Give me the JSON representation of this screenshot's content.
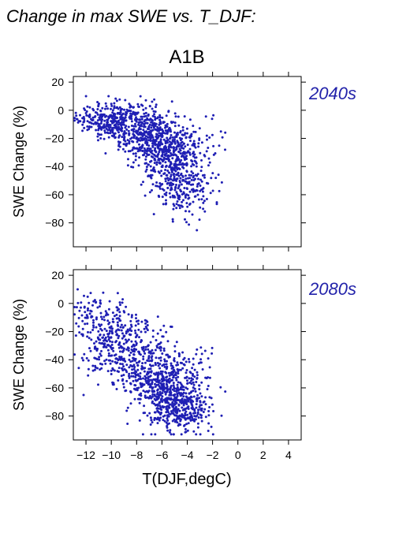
{
  "figure": {
    "title": "Change in max SWE vs. T_DJF:",
    "scenario": "A1B",
    "xlabel": "T(DJF,degC)"
  },
  "colors": {
    "points": "#1f1fb4",
    "period_label": "#2222aa",
    "axis": "#000000"
  },
  "chart_data": [
    {
      "type": "scatter",
      "period": "2040s",
      "ylabel": "SWE Change (%)",
      "xlim": [
        -13,
        5
      ],
      "ylim": [
        -97,
        24
      ],
      "xticks": [
        -12,
        -10,
        -8,
        -6,
        -4,
        -2,
        0,
        2,
        4
      ],
      "xtick_labels": [
        "",
        "",
        "",
        "",
        "",
        "",
        "",
        "",
        ""
      ],
      "yticks": [
        20,
        0,
        -20,
        -40,
        -60,
        -80
      ],
      "ytick_labels": [
        "20",
        "0",
        "−20",
        "−40",
        "−60",
        "−80"
      ],
      "grid": false,
      "clusters": [
        {
          "cx": -9.5,
          "cy": -8,
          "sx": 1.3,
          "sy": 7,
          "n": 320
        },
        {
          "cx": -7.0,
          "cy": -18,
          "sx": 1.2,
          "sy": 10,
          "n": 330
        },
        {
          "cx": -5.2,
          "cy": -35,
          "sx": 1.1,
          "sy": 13,
          "n": 380
        },
        {
          "cx": -4.2,
          "cy": -55,
          "sx": 1.2,
          "sy": 11,
          "n": 160
        },
        {
          "cx": -2.5,
          "cy": -30,
          "sx": 0.9,
          "sy": 12,
          "n": 40
        },
        {
          "cx": -11.5,
          "cy": -5,
          "sx": 0.8,
          "sy": 5,
          "n": 40
        }
      ]
    },
    {
      "type": "scatter",
      "period": "2080s",
      "ylabel": "SWE Change (%)",
      "xlim": [
        -13,
        5
      ],
      "ylim": [
        -97,
        24
      ],
      "xticks": [
        -12,
        -10,
        -8,
        -6,
        -4,
        -2,
        0,
        2,
        4
      ],
      "xtick_labels": [
        "−12",
        "−10",
        "−8",
        "−6",
        "−4",
        "−2",
        "0",
        "2",
        "4"
      ],
      "yticks": [
        20,
        0,
        -20,
        -40,
        -60,
        -80
      ],
      "ytick_labels": [
        "20",
        "0",
        "−20",
        "−40",
        "−60",
        "−80"
      ],
      "grid": false,
      "clusters": [
        {
          "cx": -10.0,
          "cy": -25,
          "sx": 1.2,
          "sy": 14,
          "n": 280
        },
        {
          "cx": -7.5,
          "cy": -45,
          "sx": 1.3,
          "sy": 15,
          "n": 300
        },
        {
          "cx": -5.6,
          "cy": -65,
          "sx": 1.1,
          "sy": 12,
          "n": 420
        },
        {
          "cx": -4.0,
          "cy": -75,
          "sx": 1.1,
          "sy": 9,
          "n": 180
        },
        {
          "cx": -3.5,
          "cy": -50,
          "sx": 1.0,
          "sy": 12,
          "n": 60
        },
        {
          "cx": -12.0,
          "cy": -5,
          "sx": 0.6,
          "sy": 6,
          "n": 30
        }
      ]
    }
  ]
}
